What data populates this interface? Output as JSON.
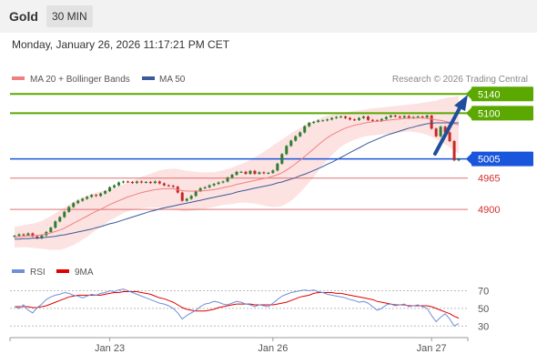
{
  "header": {
    "symbol": "Gold",
    "timeframe": "30 MIN"
  },
  "datetime": "Monday, January 26, 2026 11:17:21 PM CET",
  "colors": {
    "price_up": "#2e7d32",
    "price_down": "#c62828",
    "ma20": "#f08080",
    "ma50": "#3a5a99",
    "band_fill": "#fde2e2",
    "resistance": "#5aa800",
    "pivot": "#1a56db",
    "support": "#e07070",
    "rsi": "#6f8fd8",
    "rsi_ma": "#e00000",
    "arrow": "#1f4e9c"
  },
  "chart_data": [
    {
      "type": "candlestick",
      "legend": {
        "ma20": "MA 20 + Bollinger Bands",
        "ma50": "MA 50",
        "position": "top-left"
      },
      "attribution": "Research © 2026 Trading Central",
      "ylim": [
        4815,
        5150
      ],
      "x_ticks": [
        {
          "label": "Jan 23",
          "x": 22
        },
        {
          "label": "Jan 26",
          "x": 58
        },
        {
          "label": "Jan 27",
          "x": 93
        }
      ],
      "x_range": [
        0,
        101
      ],
      "levels": [
        {
          "label": "5140",
          "value": 5140,
          "kind": "resistance"
        },
        {
          "label": "5100",
          "value": 5100,
          "kind": "resistance"
        },
        {
          "label": "5005",
          "value": 5005,
          "kind": "pivot"
        },
        {
          "label": "4965",
          "value": 4965,
          "kind": "support"
        },
        {
          "label": "4900",
          "value": 4900,
          "kind": "support"
        }
      ],
      "closes": [
        4845,
        4848,
        4846,
        4850,
        4844,
        4840,
        4846,
        4853,
        4862,
        4875,
        4884,
        4895,
        4905,
        4913,
        4918,
        4922,
        4926,
        4930,
        4928,
        4933,
        4938,
        4946,
        4950,
        4956,
        4958,
        4957,
        4955,
        4958,
        4956,
        4957,
        4955,
        4958,
        4954,
        4950,
        4949,
        4947,
        4935,
        4918,
        4922,
        4928,
        4938,
        4944,
        4946,
        4950,
        4953,
        4956,
        4958,
        4966,
        4972,
        4978,
        4978,
        4974,
        4980,
        4974,
        4977,
        4975,
        4976,
        4981,
        4995,
        5015,
        5032,
        5043,
        5052,
        5060,
        5073,
        5080,
        5082,
        5085,
        5085,
        5087,
        5090,
        5092,
        5093,
        5090,
        5087,
        5086,
        5090,
        5093,
        5086,
        5085,
        5084,
        5088,
        5092,
        5095,
        5093,
        5091,
        5094,
        5090,
        5092,
        5093,
        5091,
        5095,
        5068,
        5052,
        5072,
        5060,
        5042,
        5002,
        5005
      ],
      "ma20": [
        4842,
        4843,
        4844,
        4845,
        4845,
        4846,
        4847,
        4849,
        4851,
        4854,
        4857,
        4861,
        4866,
        4871,
        4876,
        4881,
        4886,
        4891,
        4896,
        4900,
        4905,
        4910,
        4914,
        4918,
        4922,
        4926,
        4929,
        4932,
        4935,
        4937,
        4939,
        4941,
        4942,
        4943,
        4943,
        4943,
        4941,
        4939,
        4938,
        4938,
        4938,
        4938,
        4939,
        4940,
        4941,
        4943,
        4945,
        4947,
        4949,
        4952,
        4954,
        4956,
        4958,
        4960,
        4962,
        4964,
        4966,
        4969,
        4972,
        4976,
        4982,
        4988,
        4995,
        5002,
        5010,
        5018,
        5026,
        5034,
        5042,
        5049,
        5055,
        5060,
        5065,
        5069,
        5072,
        5075,
        5077,
        5079,
        5081,
        5082,
        5083,
        5084,
        5085,
        5086,
        5087,
        5088,
        5089,
        5090,
        5090,
        5090,
        5090,
        5089,
        5088,
        5086,
        5085,
        5083,
        5081,
        5078,
        5076
      ],
      "bb_width": [
        22,
        22,
        23,
        24,
        25,
        27,
        29,
        32,
        35,
        38,
        41,
        43,
        44,
        45,
        45,
        44,
        43,
        41,
        39,
        37,
        35,
        33,
        32,
        31,
        30,
        30,
        31,
        32,
        33,
        34,
        35,
        37,
        39,
        40,
        41,
        42,
        43,
        43,
        42,
        41,
        40,
        39,
        38,
        37,
        36,
        36,
        36,
        37,
        38,
        39,
        40,
        42,
        45,
        48,
        52,
        56,
        60,
        64,
        67,
        69,
        70,
        70,
        69,
        67,
        65,
        62,
        58,
        54,
        50,
        46,
        42,
        38,
        35,
        33,
        31,
        30,
        29,
        28,
        28,
        28,
        28,
        28,
        28,
        28,
        28,
        28,
        28,
        28,
        29,
        30,
        32,
        34,
        37,
        40,
        44,
        48,
        52,
        56,
        60
      ],
      "ma50": [
        4838,
        4838,
        4839,
        4839,
        4840,
        4840,
        4841,
        4842,
        4843,
        4844,
        4846,
        4847,
        4849,
        4851,
        4853,
        4855,
        4857,
        4859,
        4862,
        4864,
        4867,
        4870,
        4872,
        4875,
        4878,
        4881,
        4884,
        4887,
        4890,
        4893,
        4896,
        4898,
        4901,
        4903,
        4905,
        4907,
        4909,
        4911,
        4913,
        4915,
        4917,
        4919,
        4921,
        4923,
        4925,
        4927,
        4929,
        4931,
        4933,
        4936,
        4938,
        4940,
        4942,
        4944,
        4946,
        4948,
        4950,
        4952,
        4955,
        4957,
        4960,
        4963,
        4966,
        4970,
        4973,
        4977,
        4981,
        4985,
        4989,
        4994,
        4998,
        5003,
        5008,
        5013,
        5018,
        5023,
        5028,
        5033,
        5038,
        5042,
        5046,
        5050,
        5054,
        5057,
        5060,
        5063,
        5066,
        5069,
        5071,
        5074,
        5076,
        5078,
        5079,
        5080,
        5080,
        5080,
        5080,
        5080,
        5080
      ]
    },
    {
      "type": "line",
      "legend": {
        "rsi": "RSI",
        "rsi_ma": "9MA"
      },
      "ylim": [
        20,
        85
      ],
      "y_ticks": [
        70,
        50,
        30
      ],
      "rsi": [
        52,
        50,
        54,
        48,
        45,
        51,
        55,
        60,
        63,
        65,
        66,
        68,
        67,
        65,
        64,
        62,
        64,
        66,
        65,
        67,
        68,
        70,
        69,
        71,
        72,
        70,
        68,
        66,
        64,
        62,
        60,
        58,
        56,
        55,
        53,
        50,
        45,
        38,
        42,
        45,
        48,
        52,
        55,
        56,
        58,
        57,
        55,
        54,
        56,
        58,
        57,
        55,
        54,
        52,
        54,
        53,
        52,
        56,
        60,
        64,
        66,
        68,
        69,
        70,
        71,
        70,
        71,
        69,
        68,
        66,
        65,
        64,
        63,
        62,
        60,
        59,
        57,
        58,
        56,
        52,
        48,
        50,
        54,
        55,
        53,
        54,
        55,
        52,
        53,
        54,
        52,
        50,
        42,
        35,
        40,
        44,
        38,
        30,
        33
      ],
      "rsi_ma": [
        52,
        52,
        52,
        52,
        51,
        51,
        52,
        53,
        55,
        57,
        59,
        61,
        63,
        64,
        65,
        65,
        65,
        65,
        65,
        65,
        66,
        67,
        68,
        68,
        69,
        69,
        69,
        69,
        68,
        67,
        66,
        64,
        62,
        61,
        59,
        57,
        54,
        51,
        49,
        48,
        47,
        47,
        47,
        48,
        49,
        51,
        52,
        53,
        54,
        55,
        55,
        55,
        55,
        54,
        54,
        54,
        54,
        54,
        55,
        56,
        57,
        59,
        61,
        63,
        64,
        65,
        67,
        68,
        68,
        68,
        68,
        67,
        67,
        66,
        65,
        64,
        63,
        62,
        61,
        60,
        58,
        57,
        56,
        55,
        54,
        54,
        54,
        53,
        53,
        53,
        53,
        53,
        52,
        50,
        48,
        46,
        44,
        41,
        39
      ]
    }
  ]
}
